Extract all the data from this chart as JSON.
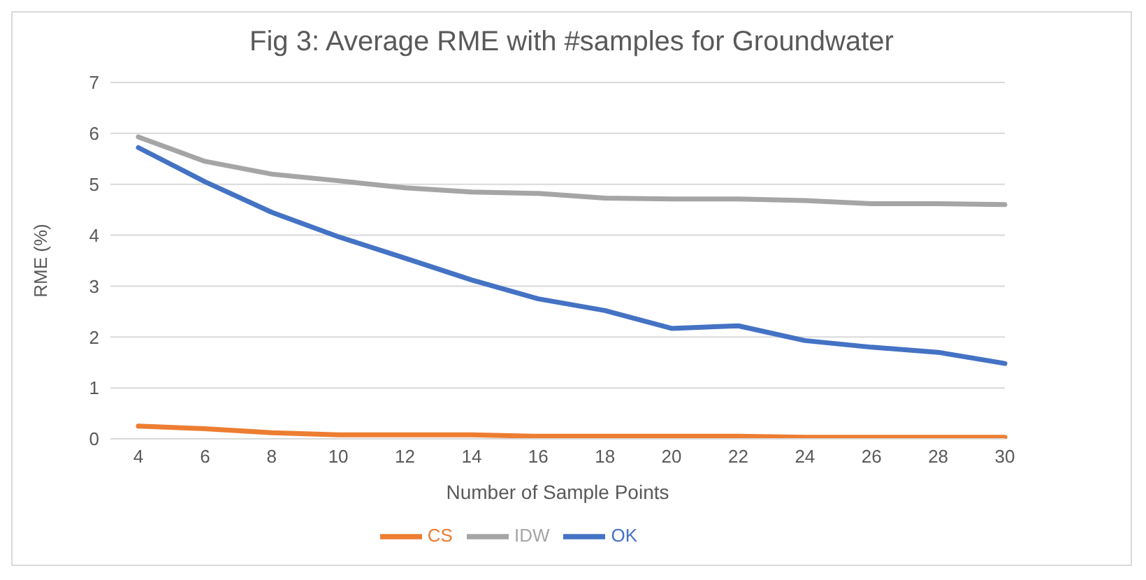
{
  "chart_data": {
    "type": "line",
    "title": "Fig 3: Average RME with #samples for Groundwater",
    "xlabel": "Number of Sample Points",
    "ylabel": "RME (%)",
    "categories": [
      "4",
      "6",
      "8",
      "10",
      "12",
      "14",
      "16",
      "18",
      "20",
      "22",
      "24",
      "26",
      "28",
      "30"
    ],
    "series": [
      {
        "name": "OK",
        "color": "#4472c4",
        "values": [
          5.72,
          5.05,
          4.45,
          3.97,
          3.55,
          3.12,
          2.75,
          2.52,
          2.17,
          2.22,
          1.93,
          1.8,
          1.7,
          1.48
        ]
      },
      {
        "name": "CS",
        "color": "#ed7d31",
        "values": [
          0.25,
          0.2,
          0.12,
          0.08,
          0.08,
          0.08,
          0.05,
          0.05,
          0.05,
          0.05,
          0.03,
          0.03,
          0.03,
          0.03
        ]
      },
      {
        "name": "IDW",
        "color": "#a5a5a5",
        "values": [
          5.93,
          5.45,
          5.2,
          5.07,
          4.93,
          4.85,
          4.82,
          4.73,
          4.71,
          4.71,
          4.68,
          4.62,
          4.62,
          4.6
        ]
      }
    ],
    "ylim": [
      0,
      7
    ],
    "yticks": [
      0,
      1,
      2,
      3,
      4,
      5,
      6,
      7
    ],
    "grid": "y",
    "legend": "bottom",
    "marker": "none",
    "line_style": "solid"
  }
}
